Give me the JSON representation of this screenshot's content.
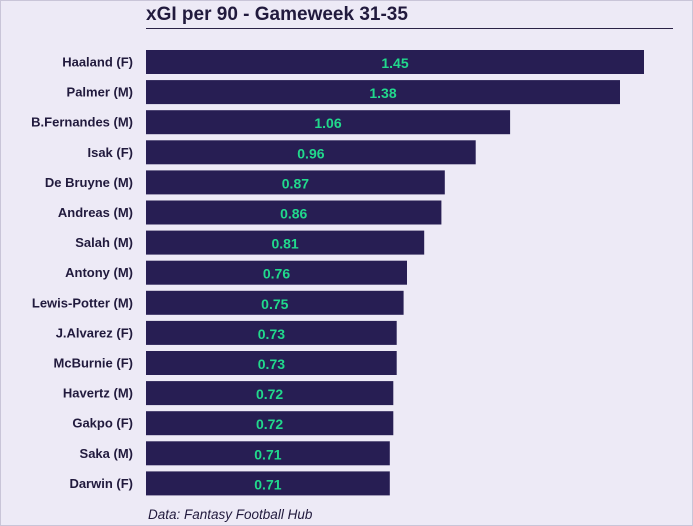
{
  "header": {
    "title": "xGI per 90 - Gameweek 31-35",
    "source": "Data: Fantasy Football Hub"
  },
  "colors": {
    "background": "#edeaf6",
    "bar": "#271e53",
    "value_text": "#21d98c",
    "label_text": "#211a3d"
  },
  "chart_data": {
    "type": "bar",
    "orientation": "horizontal",
    "title": "xGI per 90 - Gameweek 31-35",
    "categories": [
      "Haaland (F)",
      "Palmer (M)",
      "B.Fernandes (M)",
      "Isak (F)",
      "De Bruyne (M)",
      "Andreas (M)",
      "Salah (M)",
      "Antony (M)",
      "Lewis-Potter (M)",
      "J.Alvarez (F)",
      "McBurnie (F)",
      "Havertz (M)",
      "Gakpo (F)",
      "Saka (M)",
      "Darwin (F)"
    ],
    "values": [
      1.45,
      1.38,
      1.06,
      0.96,
      0.87,
      0.86,
      0.81,
      0.76,
      0.75,
      0.73,
      0.73,
      0.72,
      0.72,
      0.71,
      0.71
    ],
    "value_labels": [
      "1.45",
      "1.38",
      "1.06",
      "0.96",
      "0.87",
      "0.86",
      "0.81",
      "0.76",
      "0.75",
      "0.73",
      "0.73",
      "0.72",
      "0.72",
      "0.71",
      "0.71"
    ],
    "xlim": [
      0,
      1.45
    ],
    "xlabel": "",
    "ylabel": "",
    "grid": false,
    "legend": "none",
    "data_labels": "inside-center"
  }
}
